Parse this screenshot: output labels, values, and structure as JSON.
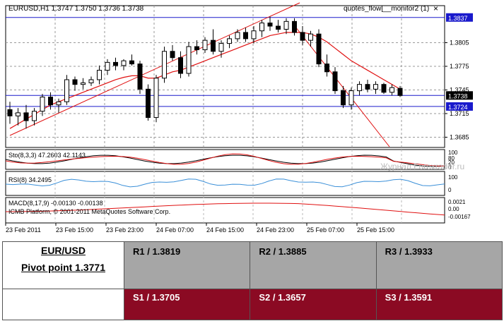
{
  "chart": {
    "header": "EURUSD,H1  1.3747  1.3750  1.3736  1.3738",
    "indicator_label": "quotes_flow[__monitor2 (1)",
    "close_glyph": "×",
    "line_labels": [
      "1.3837",
      "1.3738",
      "1.3724"
    ],
    "price_ticks": [
      "1.3805",
      "1.3775",
      "1.3745",
      "1.3715",
      "1.3685"
    ],
    "stoch": {
      "label": "Sto(8,3,3) 47.2603 42.1143",
      "ticks": [
        "100",
        "80",
        "20",
        "0"
      ]
    },
    "rsi": {
      "label": "RSI(8) 34.2495",
      "ticks": [
        "100",
        "0"
      ]
    },
    "macd": {
      "label": "MACD(8,17,9) -0.00130 -0.00138",
      "copyright": "ICMB Platform, © 2001-2011 MetaQuotes Software Corp.",
      "ticks": [
        "0.0021",
        "0.00",
        "-0.00167"
      ]
    },
    "watermark": "Журнал Forexrader.ru",
    "time_labels": [
      "23 Feb 2011",
      "23 Feb 15:00",
      "23 Feb 23:00",
      "24 Feb 07:00",
      "24 Feb 15:00",
      "24 Feb 23:00",
      "25 Feb 07:00",
      "25 Feb 15:00"
    ],
    "colors": {
      "bull": "#ffffff",
      "bear": "#000000",
      "ma": "#e01010",
      "level": "#1a1acc",
      "rsi": "#3a8fd8",
      "tag": "#1a1acc"
    }
  },
  "chart_data": {
    "type": "candlestick",
    "symbol": "EURUSD",
    "timeframe": "H1",
    "ylim": [
      1.3672,
      1.3852
    ],
    "resistance": 1.3837,
    "support": 1.3724,
    "current": 1.3738,
    "candles": [
      [
        1.372,
        1.373,
        1.3702,
        1.3712
      ],
      [
        1.3712,
        1.3722,
        1.37,
        1.3716
      ],
      [
        1.3716,
        1.3726,
        1.3696,
        1.3706
      ],
      [
        1.3706,
        1.3722,
        1.37,
        1.3718
      ],
      [
        1.3718,
        1.374,
        1.3712,
        1.3736
      ],
      [
        1.3736,
        1.3742,
        1.372,
        1.3726
      ],
      [
        1.3726,
        1.3734,
        1.3716,
        1.373
      ],
      [
        1.373,
        1.3764,
        1.3726,
        1.3758
      ],
      [
        1.3758,
        1.3762,
        1.3744,
        1.3752
      ],
      [
        1.3752,
        1.376,
        1.3746,
        1.3754
      ],
      [
        1.3754,
        1.3762,
        1.375,
        1.3758
      ],
      [
        1.3758,
        1.3776,
        1.3752,
        1.377
      ],
      [
        1.377,
        1.3784,
        1.3764,
        1.378
      ],
      [
        1.378,
        1.3786,
        1.377,
        1.3776
      ],
      [
        1.3776,
        1.3784,
        1.377,
        1.3782
      ],
      [
        1.3782,
        1.379,
        1.3776,
        1.3778
      ],
      [
        1.3778,
        1.3782,
        1.374,
        1.3746
      ],
      [
        1.3746,
        1.3752,
        1.3706,
        1.371
      ],
      [
        1.371,
        1.3764,
        1.3704,
        1.376
      ],
      [
        1.376,
        1.38,
        1.3754,
        1.3794
      ],
      [
        1.3794,
        1.3802,
        1.3782,
        1.3786
      ],
      [
        1.3786,
        1.3794,
        1.376,
        1.3766
      ],
      [
        1.3766,
        1.3806,
        1.3762,
        1.38
      ],
      [
        1.38,
        1.3808,
        1.379,
        1.3796
      ],
      [
        1.3796,
        1.3812,
        1.3792,
        1.3808
      ],
      [
        1.3808,
        1.3822,
        1.379,
        1.3794
      ],
      [
        1.3794,
        1.3808,
        1.3786,
        1.3804
      ],
      [
        1.3804,
        1.3814,
        1.3798,
        1.381
      ],
      [
        1.381,
        1.3822,
        1.3806,
        1.3818
      ],
      [
        1.3818,
        1.3824,
        1.3806,
        1.381
      ],
      [
        1.381,
        1.3826,
        1.3804,
        1.382
      ],
      [
        1.382,
        1.3834,
        1.3812,
        1.383
      ],
      [
        1.383,
        1.3838,
        1.382,
        1.3826
      ],
      [
        1.3826,
        1.3834,
        1.3818,
        1.3822
      ],
      [
        1.3822,
        1.3836,
        1.3816,
        1.3832
      ],
      [
        1.3832,
        1.3836,
        1.3814,
        1.3818
      ],
      [
        1.3818,
        1.3826,
        1.3802,
        1.3808
      ],
      [
        1.3808,
        1.382,
        1.38,
        1.3816
      ],
      [
        1.3816,
        1.3822,
        1.3774,
        1.3778
      ],
      [
        1.3778,
        1.379,
        1.3762,
        1.3768
      ],
      [
        1.3768,
        1.3774,
        1.374,
        1.3744
      ],
      [
        1.3744,
        1.375,
        1.3722,
        1.3726
      ],
      [
        1.3726,
        1.3748,
        1.372,
        1.3744
      ],
      [
        1.3744,
        1.3756,
        1.3738,
        1.3752
      ],
      [
        1.3752,
        1.3758,
        1.3742,
        1.3746
      ],
      [
        1.3746,
        1.3756,
        1.374,
        1.3752
      ],
      [
        1.3752,
        1.3754,
        1.374,
        1.3742
      ],
      [
        1.3742,
        1.3752,
        1.3738,
        1.3748
      ],
      [
        1.3747,
        1.375,
        1.3736,
        1.3738
      ]
    ],
    "ma": [
      1.3696,
      1.3702,
      1.3708,
      1.3714,
      1.372,
      1.3726,
      1.373,
      1.3734,
      1.3738,
      1.3742,
      1.3746,
      1.375,
      1.3754,
      1.3758,
      1.3761,
      1.3763,
      1.3763,
      1.376,
      1.376,
      1.3764,
      1.3768,
      1.377,
      1.3774,
      1.3778,
      1.3782,
      1.3786,
      1.379,
      1.3794,
      1.3798,
      1.3802,
      1.3806,
      1.381,
      1.3814,
      1.3816,
      1.3818,
      1.3818,
      1.3818,
      1.3816,
      1.3812,
      1.3806,
      1.3798,
      1.379,
      1.3782,
      1.3776,
      1.377,
      1.3764,
      1.3758,
      1.3752,
      1.3746
    ]
  },
  "pivot": {
    "pair": "EUR/USD",
    "pivot_point": "Pivot point 1.3771",
    "resistances": [
      "R1 / 1.3819",
      "R2 / 1.3885",
      "R3 / 1.3933"
    ],
    "supports": [
      "S1 / 1.3705",
      "S2 / 1.3657",
      "S3 / 1.3591"
    ]
  }
}
